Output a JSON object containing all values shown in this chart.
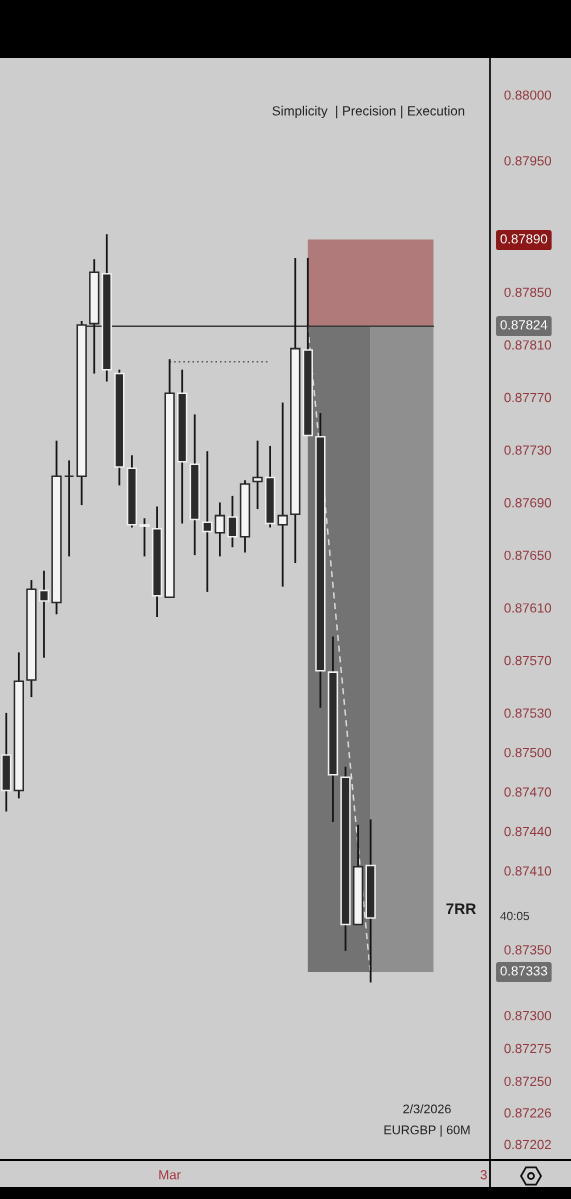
{
  "chart_data": {
    "type": "candlestick",
    "subtitle": "Simplicity  | Precision | Execution",
    "categories": [
      null,
      null,
      null,
      null,
      null,
      null,
      null,
      null,
      null,
      null,
      null,
      null,
      null,
      "Mar",
      null,
      null,
      null,
      null,
      null,
      null,
      null,
      null,
      null,
      null,
      null,
      null,
      null,
      null,
      null,
      null,
      null,
      null,
      null,
      null,
      null,
      null,
      null,
      null,
      "3"
    ],
    "ohlc": [
      [
        0.87498,
        0.8753,
        0.87455,
        0.87471
      ],
      [
        0.87471,
        0.87576,
        0.87465,
        0.87554
      ],
      [
        0.87555,
        0.87631,
        0.87542,
        0.87624
      ],
      [
        0.87623,
        0.87638,
        0.87572,
        0.87615
      ],
      [
        0.87614,
        0.87737,
        0.87605,
        0.8771
      ],
      [
        0.8771,
        0.87722,
        0.87649,
        0.8771
      ],
      [
        0.8771,
        0.87828,
        0.87688,
        0.87825
      ],
      [
        0.87826,
        0.87875,
        0.87788,
        0.87865
      ],
      [
        0.87864,
        0.87894,
        0.87782,
        0.87791
      ],
      [
        0.87788,
        0.87791,
        0.87703,
        0.87717
      ],
      [
        0.87716,
        0.87726,
        0.87671,
        0.87673
      ],
      [
        0.87673,
        0.87678,
        0.87649,
        0.87672
      ],
      [
        0.8767,
        0.87687,
        0.87603,
        0.87619
      ],
      [
        0.87618,
        0.87799,
        0.87618,
        0.87773
      ],
      [
        0.87773,
        0.87791,
        0.87674,
        0.87721
      ],
      [
        0.87719,
        0.87757,
        0.8765,
        0.87677
      ],
      [
        0.87675,
        0.87729,
        0.87622,
        0.87668
      ],
      [
        0.87667,
        0.8769,
        0.87649,
        0.8768
      ],
      [
        0.87679,
        0.87695,
        0.87656,
        0.87664
      ],
      [
        0.87664,
        0.87707,
        0.87652,
        0.87704
      ],
      [
        0.87706,
        0.87737,
        0.87685,
        0.87709
      ],
      [
        0.87709,
        0.87733,
        0.87671,
        0.87674
      ],
      [
        0.87673,
        0.87766,
        0.87626,
        0.8768
      ],
      [
        0.87681,
        0.87876,
        0.87644,
        0.87807
      ],
      [
        0.87806,
        0.87876,
        0.87741,
        0.87741
      ],
      [
        0.8774,
        0.87758,
        0.87534,
        0.87562
      ],
      [
        0.87561,
        0.87588,
        0.87447,
        0.87483
      ],
      [
        0.87481,
        0.87489,
        0.87349,
        0.87369
      ],
      [
        0.87369,
        0.87445,
        0.87369,
        0.87413
      ],
      [
        0.87414,
        0.87449,
        0.87325,
        0.87374
      ],
      null,
      null,
      null,
      null,
      null,
      null,
      null,
      null,
      null
    ],
    "series": [
      {
        "type": "line",
        "color": "#b07a7a",
        "values": [
          null,
          null,
          null,
          null,
          null,
          null,
          null,
          null,
          null,
          null,
          null,
          null,
          null,
          null,
          null,
          null,
          null,
          null,
          null,
          null,
          null,
          null,
          null,
          null,
          null,
          null,
          null,
          null,
          null,
          null,
          null,
          null,
          null,
          null,
          null,
          null,
          null,
          null,
          null
        ],
        "lower": [
          null,
          null,
          null,
          null,
          null,
          null,
          null,
          null,
          null,
          null,
          null,
          null,
          null,
          null,
          null,
          null,
          null,
          null,
          null,
          null,
          null,
          null,
          null,
          null,
          0.87824,
          0.87824,
          0.87824,
          0.87824,
          0.87824,
          0.87824,
          0.87824,
          0.87824,
          0.87824,
          0.87824,
          0.87824,
          null,
          null,
          null,
          null
        ],
        "upper": [
          null,
          null,
          null,
          null,
          null,
          null,
          null,
          null,
          null,
          null,
          null,
          null,
          null,
          null,
          null,
          null,
          null,
          null,
          null,
          null,
          null,
          null,
          null,
          null,
          0.8789,
          0.8789,
          0.8789,
          0.8789,
          0.8789,
          0.8789,
          0.8789,
          0.8789,
          0.8789,
          0.8789,
          0.8789,
          null,
          null,
          null,
          null
        ]
      },
      {
        "type": "line",
        "color": "#737373",
        "values": [
          null,
          null,
          null,
          null,
          null,
          null,
          null,
          null,
          null,
          null,
          null,
          null,
          null,
          null,
          null,
          null,
          null,
          null,
          null,
          null,
          null,
          null,
          null,
          null,
          null,
          null,
          null,
          null,
          null,
          null,
          null,
          null,
          null,
          null,
          null,
          null,
          null,
          null,
          null
        ],
        "lower": [
          null,
          null,
          null,
          null,
          null,
          null,
          null,
          null,
          null,
          null,
          null,
          null,
          null,
          null,
          null,
          null,
          null,
          null,
          null,
          null,
          null,
          null,
          null,
          null,
          0.87333,
          0.87333,
          0.87333,
          0.87333,
          0.87333,
          0.87333,
          null,
          null,
          null,
          null,
          null,
          null,
          null,
          null,
          null
        ],
        "upper": [
          null,
          null,
          null,
          null,
          null,
          null,
          null,
          null,
          null,
          null,
          null,
          null,
          null,
          null,
          null,
          null,
          null,
          null,
          null,
          null,
          null,
          null,
          null,
          null,
          0.87824,
          0.87824,
          0.87824,
          0.87824,
          0.87824,
          0.87824,
          null,
          null,
          null,
          null,
          null,
          null,
          null,
          null,
          null
        ]
      },
      {
        "type": "line",
        "color": "#8f8f8f",
        "values": [
          null,
          null,
          null,
          null,
          null,
          null,
          null,
          null,
          null,
          null,
          null,
          null,
          null,
          null,
          null,
          null,
          null,
          null,
          null,
          null,
          null,
          null,
          null,
          null,
          null,
          null,
          null,
          null,
          null,
          null,
          null,
          null,
          null,
          null,
          null,
          null,
          null,
          null,
          null
        ],
        "lower": [
          null,
          null,
          null,
          null,
          null,
          null,
          null,
          null,
          null,
          null,
          null,
          null,
          null,
          null,
          null,
          null,
          null,
          null,
          null,
          null,
          null,
          null,
          null,
          null,
          null,
          null,
          null,
          null,
          null,
          0.87333,
          0.87333,
          0.87333,
          0.87333,
          0.87333,
          0.87333,
          null,
          null,
          null,
          null
        ],
        "upper": [
          null,
          null,
          null,
          null,
          null,
          null,
          null,
          null,
          null,
          null,
          null,
          null,
          null,
          null,
          null,
          null,
          null,
          null,
          null,
          null,
          null,
          null,
          null,
          null,
          null,
          null,
          null,
          null,
          null,
          0.87824,
          0.87824,
          0.87824,
          0.87824,
          0.87824,
          0.87824,
          null,
          null,
          null,
          null
        ]
      },
      {
        "type": "line",
        "color": "#3a3a3a",
        "values": [
          null,
          null,
          null,
          null,
          null,
          null,
          0.87824,
          0.87824,
          0.87824,
          0.87824,
          0.87824,
          0.87824,
          0.87824,
          0.87824,
          0.87824,
          0.87824,
          0.87824,
          0.87824,
          0.87824,
          0.87824,
          0.87824,
          0.87824,
          0.87824,
          0.87824,
          0.87824,
          0.87824,
          0.87824,
          0.87824,
          0.87824,
          0.87824,
          0.87824,
          0.87824,
          0.87824,
          0.87824,
          0.87824,
          null,
          null,
          null,
          null
        ]
      },
      {
        "type": "line",
        "color": "#555555",
        "line_style": "dotted",
        "values": [
          null,
          null,
          null,
          null,
          null,
          null,
          null,
          null,
          null,
          null,
          null,
          null,
          null,
          0.87797,
          0.87797,
          0.87797,
          0.87797,
          0.87797,
          0.87797,
          0.87797,
          0.87797,
          0.87797,
          null,
          null,
          null,
          null,
          null,
          null,
          null,
          null,
          null,
          null,
          null,
          null,
          null,
          null,
          null,
          null,
          null
        ]
      },
      {
        "type": "line",
        "color": "#d9d9d9",
        "line_style": "dashed",
        "values": [
          null,
          null,
          null,
          null,
          null,
          null,
          null,
          null,
          null,
          null,
          null,
          null,
          null,
          null,
          null,
          null,
          null,
          null,
          null,
          null,
          null,
          null,
          null,
          null,
          0.87824,
          0.87726,
          0.87627,
          0.87528,
          0.87429,
          0.8733,
          null,
          null,
          null,
          null,
          null,
          null,
          null,
          null,
          null
        ]
      }
    ],
    "ylim": [
      0.8719,
      0.88028
    ],
    "yticks": [
      {
        "value": 0.88,
        "label": "0.88000"
      },
      {
        "value": 0.8795,
        "label": "0.87950"
      },
      {
        "value": 0.8785,
        "label": "0.87850"
      },
      {
        "value": 0.8781,
        "label": "0.87810"
      },
      {
        "value": 0.8777,
        "label": "0.87770"
      },
      {
        "value": 0.8773,
        "label": "0.87730"
      },
      {
        "value": 0.8769,
        "label": "0.87690"
      },
      {
        "value": 0.8765,
        "label": "0.87650"
      },
      {
        "value": 0.8761,
        "label": "0.87610"
      },
      {
        "value": 0.8757,
        "label": "0.87570"
      },
      {
        "value": 0.8753,
        "label": "0.87530"
      },
      {
        "value": 0.875,
        "label": "0.87500"
      },
      {
        "value": 0.8747,
        "label": "0.87470"
      },
      {
        "value": 0.8744,
        "label": "0.87440"
      },
      {
        "value": 0.8741,
        "label": "0.87410"
      },
      {
        "value": 0.8735,
        "label": "0.87350"
      },
      {
        "value": 0.873,
        "label": "0.87300"
      },
      {
        "value": 0.87275,
        "label": "0.87275"
      },
      {
        "value": 0.8725,
        "label": "0.87250"
      },
      {
        "value": 0.87226,
        "label": "0.87226"
      },
      {
        "value": 0.87202,
        "label": "0.87202"
      }
    ],
    "annotations": [
      "2/3/2026",
      "EURGBP | 60M",
      "7RR",
      "40:05",
      "0.87890",
      "0.87824",
      "0.87333"
    ]
  }
}
